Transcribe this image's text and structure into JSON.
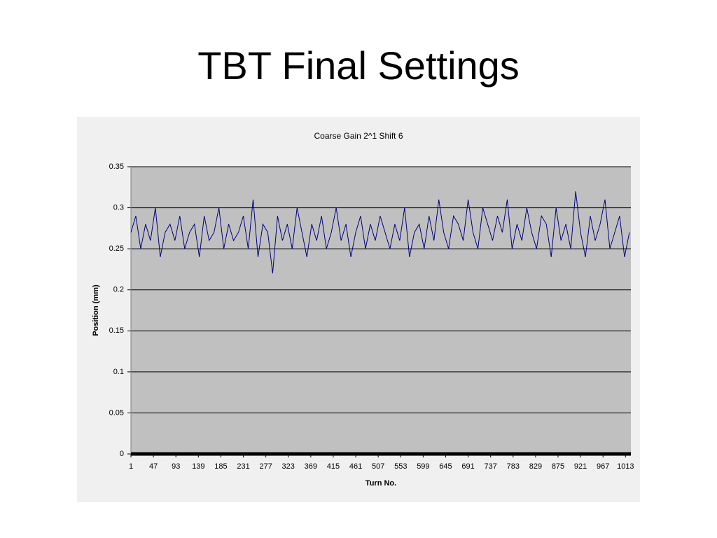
{
  "slide_title": "TBT Final Settings",
  "chart_data": {
    "type": "line",
    "title": "Coarse Gain 2^1 Shift 6",
    "x_label": "Turn No.",
    "y_label": "Position (mm)",
    "x": [
      1,
      11,
      21,
      31,
      41,
      51,
      61,
      71,
      81,
      91,
      101,
      111,
      121,
      131,
      141,
      151,
      161,
      171,
      181,
      191,
      201,
      211,
      221,
      231,
      241,
      251,
      261,
      271,
      281,
      291,
      301,
      311,
      321,
      331,
      341,
      351,
      361,
      371,
      381,
      391,
      401,
      411,
      421,
      431,
      441,
      451,
      461,
      471,
      481,
      491,
      501,
      511,
      521,
      531,
      541,
      551,
      561,
      571,
      581,
      591,
      601,
      611,
      621,
      631,
      641,
      651,
      661,
      671,
      681,
      691,
      701,
      711,
      721,
      731,
      741,
      751,
      761,
      771,
      781,
      791,
      801,
      811,
      821,
      831,
      841,
      851,
      861,
      871,
      881,
      891,
      901,
      911,
      921,
      931,
      941,
      951,
      961,
      971,
      981,
      991,
      1001,
      1011,
      1021
    ],
    "values": [
      0.27,
      0.29,
      0.25,
      0.28,
      0.26,
      0.3,
      0.24,
      0.27,
      0.28,
      0.26,
      0.29,
      0.25,
      0.27,
      0.28,
      0.24,
      0.29,
      0.26,
      0.27,
      0.3,
      0.25,
      0.28,
      0.26,
      0.27,
      0.29,
      0.25,
      0.31,
      0.24,
      0.28,
      0.27,
      0.22,
      0.29,
      0.26,
      0.28,
      0.25,
      0.3,
      0.27,
      0.24,
      0.28,
      0.26,
      0.29,
      0.25,
      0.27,
      0.3,
      0.26,
      0.28,
      0.24,
      0.27,
      0.29,
      0.25,
      0.28,
      0.26,
      0.29,
      0.27,
      0.25,
      0.28,
      0.26,
      0.3,
      0.24,
      0.27,
      0.28,
      0.25,
      0.29,
      0.26,
      0.31,
      0.27,
      0.25,
      0.29,
      0.28,
      0.26,
      0.31,
      0.27,
      0.25,
      0.3,
      0.28,
      0.26,
      0.29,
      0.27,
      0.31,
      0.25,
      0.28,
      0.26,
      0.3,
      0.27,
      0.25,
      0.29,
      0.28,
      0.24,
      0.3,
      0.26,
      0.28,
      0.25,
      0.32,
      0.27,
      0.24,
      0.29,
      0.26,
      0.28,
      0.31,
      0.25,
      0.27,
      0.29,
      0.24,
      0.27
    ],
    "color": "#000080",
    "xlim": [
      1,
      1024
    ],
    "xticks": [
      1,
      47,
      93,
      139,
      185,
      231,
      277,
      323,
      369,
      415,
      461,
      507,
      553,
      599,
      645,
      691,
      737,
      783,
      829,
      875,
      921,
      967,
      1013
    ],
    "ylim": [
      0,
      0.35
    ],
    "yticks": [
      0,
      0.05,
      0.1,
      0.15,
      0.2,
      0.25,
      0.3,
      0.35
    ],
    "grid": true
  }
}
